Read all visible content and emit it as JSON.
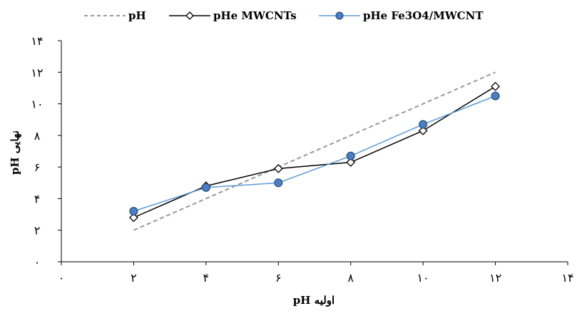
{
  "chart_data": {
    "type": "line",
    "xlabel": "pH اولیه",
    "ylabel": "pH نهایی",
    "xlim": [
      0,
      14
    ],
    "ylim": [
      0,
      14
    ],
    "x_ticks": [
      0,
      2,
      4,
      6,
      8,
      10,
      12,
      14
    ],
    "y_ticks": [
      0,
      2,
      4,
      6,
      8,
      10,
      12,
      14
    ],
    "x_tick_labels": [
      "۰",
      "۲",
      "۴",
      "۶",
      "۸",
      "۱۰",
      "۱۲",
      "۱۴"
    ],
    "y_tick_labels": [
      "۰",
      "۲",
      "۴",
      "۶",
      "۸",
      "۱۰",
      "۱۲",
      "۱۴"
    ],
    "grid": false,
    "legend_position": "top",
    "series": [
      {
        "name": "pH",
        "style": "dashed",
        "color": "#999999",
        "x": [
          2,
          12
        ],
        "y": [
          2,
          12
        ]
      },
      {
        "name": "pHe MWCNTs",
        "style": "line-diamond",
        "color": "#000000",
        "x": [
          2,
          4,
          6,
          8,
          10,
          12
        ],
        "y": [
          2.8,
          4.8,
          5.9,
          6.3,
          8.3,
          11.1
        ]
      },
      {
        "name": "pHe Fe3O4/MWCNT",
        "style": "line-circle",
        "color": "#5b9bd5",
        "marker_fill": "#4a7fc1",
        "x": [
          2,
          4,
          6,
          8,
          10,
          12
        ],
        "y": [
          3.2,
          4.7,
          5.0,
          6.7,
          8.7,
          10.5
        ]
      }
    ]
  }
}
